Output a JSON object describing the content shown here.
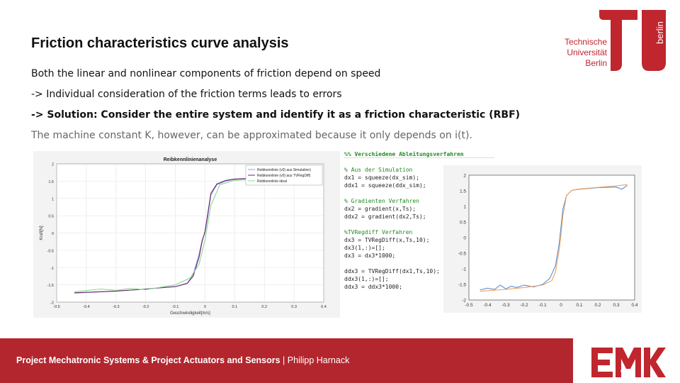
{
  "slide": {
    "title": "Friction characteristics curve analysis",
    "bullets": [
      "Both the linear and nonlinear components of friction depend on speed",
      "-> Individual consideration of the friction terms leads to errors",
      "-> Solution: Consider the entire system and identify it as a friction characteristic (RBF)",
      "The machine constant K, however, can be approximated because it only depends on i(t)."
    ]
  },
  "logo": {
    "lines": [
      "Technische",
      "Universität",
      "Berlin"
    ],
    "vertical": "berlin",
    "color": "#c0262d"
  },
  "footer": {
    "project": "Project Mechatronic Systems & Project Actuators and Sensors",
    "separator": " | ",
    "author": "Philipp Harnack",
    "color": "#b3262e"
  },
  "code": [
    "%% Verschiedene Ableitungsverfahren",
    "",
    "% Aus der Simulation",
    "dx1 = squeeze(dx_sim);",
    "ddx1 = squeeze(ddx_sim);",
    "",
    "% Gradienten Verfahren",
    "dx2 = gradient(x,Ts);",
    "ddx2 = gradient(dx2,Ts);",
    "",
    "%TVRegdiff Verfahren",
    "dx3 = TVRegDiff(x,Ts,10);",
    "dx3(1,:)=[];",
    "dx3 = dx3*1000;",
    "",
    "ddx3 = TVRegDiff(dx1,Ts,10);",
    "ddx3(1,:)=[];",
    "ddx3 = ddx3*1000;"
  ],
  "chart_data": [
    {
      "type": "line",
      "title": "Reibkennlinienanalyse",
      "xlabel": "Geschwindigkeit[m/s]",
      "ylabel": "Kraft[N]",
      "xlim": [
        -0.5,
        0.4
      ],
      "ylim": [
        -2,
        2
      ],
      "xticks": [
        "-0.5",
        "-0.4",
        "-0.3",
        "-0.2",
        "-0.1",
        "0",
        "0.1",
        "0.2",
        "0.3",
        "0.4"
      ],
      "yticks": [
        "-2",
        "-1.5",
        "-1",
        "-0.5",
        "0",
        "0.5",
        "1",
        "1.5",
        "2"
      ],
      "legend": "top-right",
      "grid": true,
      "series": [
        {
          "name": "Reibkennlinie (v0) aus Simulation)",
          "color": "#9a9af0",
          "x": [
            -0.44,
            -0.3,
            -0.2,
            -0.1,
            -0.06,
            -0.04,
            -0.02,
            -0.01,
            0,
            0.01,
            0.02,
            0.04,
            0.07,
            0.1,
            0.2,
            0.25
          ],
          "y": [
            -1.74,
            -1.68,
            -1.62,
            -1.55,
            -1.45,
            -1.2,
            -0.6,
            -0.2,
            0,
            0.5,
            1.1,
            1.4,
            1.5,
            1.55,
            1.6,
            1.62
          ]
        },
        {
          "name": "Reibkennlinie (v0) aus TVRegDiff)",
          "color": "#6a2a6a",
          "x": [
            -0.44,
            -0.3,
            -0.2,
            -0.1,
            -0.06,
            -0.04,
            -0.02,
            -0.01,
            0,
            0.01,
            0.02,
            0.04,
            0.07,
            0.1,
            0.2,
            0.25
          ],
          "y": [
            -1.73,
            -1.68,
            -1.62,
            -1.55,
            -1.46,
            -1.25,
            -0.7,
            -0.25,
            0.05,
            0.6,
            1.15,
            1.42,
            1.52,
            1.56,
            1.6,
            1.63
          ]
        },
        {
          "name": "Reibkennlinie ideal",
          "color": "#8cd68c",
          "x": [
            -0.44,
            -0.35,
            -0.3,
            -0.25,
            -0.2,
            -0.1,
            -0.05,
            -0.02,
            0,
            0.02,
            0.05,
            0.1,
            0.2,
            0.25
          ],
          "y": [
            -1.7,
            -1.62,
            -1.66,
            -1.6,
            -1.64,
            -1.5,
            -1.3,
            -0.9,
            -0.2,
            0.8,
            1.4,
            1.52,
            1.58,
            1.6
          ]
        }
      ]
    },
    {
      "type": "line",
      "title": "",
      "xlim": [
        -0.5,
        0.4
      ],
      "ylim": [
        -2,
        2
      ],
      "xticks": [
        "-0.5",
        "-0.4",
        "-0.3",
        "-0.2",
        "-0.1",
        "0",
        "0.1",
        "0.2",
        "0.3",
        "0.4"
      ],
      "yticks": [
        "-2",
        "-1.5",
        "-1",
        "-0.5",
        "0",
        "0.5",
        "1",
        "1.5",
        "2"
      ],
      "grid": false,
      "series": [
        {
          "name": "",
          "color": "#5b8fd6",
          "x": [
            -0.44,
            -0.4,
            -0.36,
            -0.33,
            -0.3,
            -0.27,
            -0.24,
            -0.2,
            -0.15,
            -0.1,
            -0.06,
            -0.03,
            -0.01,
            0.01,
            0.03,
            0.06,
            0.1,
            0.2,
            0.3,
            0.33,
            0.36
          ],
          "y": [
            -1.68,
            -1.62,
            -1.66,
            -1.52,
            -1.64,
            -1.56,
            -1.6,
            -1.52,
            -1.58,
            -1.5,
            -1.3,
            -0.9,
            -0.2,
            0.9,
            1.35,
            1.52,
            1.55,
            1.6,
            1.62,
            1.55,
            1.67
          ]
        },
        {
          "name": "",
          "color": "#f0a05a",
          "x": [
            -0.44,
            -0.3,
            -0.2,
            -0.1,
            -0.05,
            -0.03,
            -0.01,
            0,
            0.01,
            0.03,
            0.06,
            0.1,
            0.2,
            0.3,
            0.36
          ],
          "y": [
            -1.72,
            -1.66,
            -1.6,
            -1.52,
            -1.38,
            -1.1,
            -0.4,
            0.1,
            0.7,
            1.35,
            1.52,
            1.56,
            1.61,
            1.66,
            1.7
          ]
        }
      ]
    }
  ]
}
